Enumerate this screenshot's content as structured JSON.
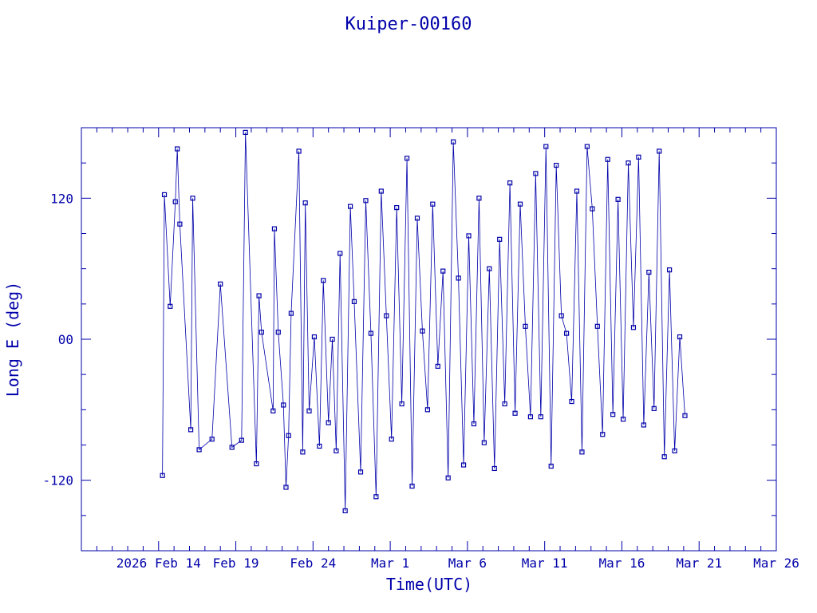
{
  "chart_data": {
    "type": "scatter",
    "title": "Kuiper-00160",
    "xlabel": "Time(UTC)",
    "ylabel": "Long E (deg)",
    "x_tick_labels": [
      "2026 Feb 14",
      "Feb 19",
      "Feb 24",
      "Mar 1",
      "Mar 6",
      "Mar 11",
      "Mar 16",
      "Mar 21",
      "Mar 26"
    ],
    "x_tick_dates": [
      "2026-02-14",
      "2026-02-19",
      "2026-02-24",
      "2026-03-01",
      "2026-03-06",
      "2026-03-11",
      "2026-03-16",
      "2026-03-21",
      "2026-03-26"
    ],
    "y_tick_labels": [
      "-120",
      "00",
      "120"
    ],
    "y_tick_values": [
      -120,
      0,
      120
    ],
    "xlim": [
      "2026-02-09",
      "2026-03-26"
    ],
    "ylim": [
      -180,
      180
    ],
    "grid": false,
    "series": [
      {
        "connect": true,
        "points": [
          [
            "2026-02-14 06:00",
            -116
          ],
          [
            "2026-02-14 09:00",
            123
          ],
          [
            "2026-02-14 18:00",
            28
          ],
          [
            "2026-02-15 02:00",
            117
          ],
          [
            "2026-02-15 05:00",
            162
          ],
          [
            "2026-02-15 09:00",
            98
          ],
          [
            "2026-02-16 02:00",
            -77
          ],
          [
            "2026-02-16 05:00",
            120
          ],
          [
            "2026-02-16 15:00",
            -94
          ],
          [
            "2026-02-17 11:00",
            -85
          ],
          [
            "2026-02-18 00:00",
            47
          ],
          [
            "2026-02-18 18:00",
            -92
          ],
          [
            "2026-02-19 09:00",
            -86
          ],
          [
            "2026-02-19 15:00",
            176
          ],
          [
            "2026-02-20 08:00",
            -106
          ],
          [
            "2026-02-20 12:00",
            37
          ],
          [
            "2026-02-20 16:00",
            6
          ],
          [
            "2026-02-21 10:00",
            -61
          ],
          [
            "2026-02-21 12:00",
            94
          ],
          [
            "2026-02-21 18:00",
            6
          ],
          [
            "2026-02-22 02:00",
            -56
          ],
          [
            "2026-02-22 06:00",
            -126
          ],
          [
            "2026-02-22 10:00",
            -82
          ],
          [
            "2026-02-22 14:00",
            22
          ],
          [
            "2026-02-23 02:00",
            160
          ],
          [
            "2026-02-23 08:00",
            -96
          ],
          [
            "2026-02-23 12:00",
            116
          ],
          [
            "2026-02-23 18:00",
            -61
          ],
          [
            "2026-02-24 02:00",
            2
          ],
          [
            "2026-02-24 10:00",
            -91
          ],
          [
            "2026-02-24 16:00",
            50
          ],
          [
            "2026-02-25 00:00",
            -71
          ],
          [
            "2026-02-25 06:00",
            0
          ],
          [
            "2026-02-25 12:00",
            -95
          ],
          [
            "2026-02-25 18:00",
            73
          ],
          [
            "2026-02-26 02:00",
            -146
          ],
          [
            "2026-02-26 10:00",
            113
          ],
          [
            "2026-02-26 16:00",
            32
          ],
          [
            "2026-02-27 02:00",
            -113
          ],
          [
            "2026-02-27 10:00",
            118
          ],
          [
            "2026-02-27 18:00",
            5
          ],
          [
            "2026-02-28 02:00",
            -134
          ],
          [
            "2026-02-28 10:00",
            126
          ],
          [
            "2026-02-28 18:00",
            20
          ],
          [
            "2026-03-01 02:00",
            -85
          ],
          [
            "2026-03-01 10:00",
            112
          ],
          [
            "2026-03-01 18:00",
            -55
          ],
          [
            "2026-03-02 02:00",
            154
          ],
          [
            "2026-03-02 10:00",
            -125
          ],
          [
            "2026-03-02 18:00",
            103
          ],
          [
            "2026-03-03 02:00",
            7
          ],
          [
            "2026-03-03 10:00",
            -60
          ],
          [
            "2026-03-03 18:00",
            115
          ],
          [
            "2026-03-04 02:00",
            -23
          ],
          [
            "2026-03-04 10:00",
            58
          ],
          [
            "2026-03-04 18:00",
            -118
          ],
          [
            "2026-03-05 02:00",
            168
          ],
          [
            "2026-03-05 10:00",
            52
          ],
          [
            "2026-03-05 18:00",
            -107
          ],
          [
            "2026-03-06 02:00",
            88
          ],
          [
            "2026-03-06 10:00",
            -72
          ],
          [
            "2026-03-06 18:00",
            120
          ],
          [
            "2026-03-07 02:00",
            -88
          ],
          [
            "2026-03-07 10:00",
            60
          ],
          [
            "2026-03-07 18:00",
            -110
          ],
          [
            "2026-03-08 02:00",
            85
          ],
          [
            "2026-03-08 10:00",
            -55
          ],
          [
            "2026-03-08 18:00",
            133
          ],
          [
            "2026-03-09 02:00",
            -63
          ],
          [
            "2026-03-09 10:00",
            115
          ],
          [
            "2026-03-09 18:00",
            11
          ],
          [
            "2026-03-10 02:00",
            -66
          ],
          [
            "2026-03-10 10:00",
            141
          ],
          [
            "2026-03-10 18:00",
            -66
          ],
          [
            "2026-03-11 02:00",
            164
          ],
          [
            "2026-03-11 10:00",
            -108
          ],
          [
            "2026-03-11 18:00",
            148
          ],
          [
            "2026-03-12 02:00",
            20
          ],
          [
            "2026-03-12 10:00",
            5
          ],
          [
            "2026-03-12 18:00",
            -53
          ],
          [
            "2026-03-13 02:00",
            126
          ],
          [
            "2026-03-13 10:00",
            -96
          ],
          [
            "2026-03-13 18:00",
            164
          ],
          [
            "2026-03-14 02:00",
            111
          ],
          [
            "2026-03-14 10:00",
            11
          ],
          [
            "2026-03-14 18:00",
            -81
          ],
          [
            "2026-03-15 02:00",
            153
          ],
          [
            "2026-03-15 10:00",
            -64
          ],
          [
            "2026-03-15 18:00",
            119
          ],
          [
            "2026-03-16 02:00",
            -68
          ],
          [
            "2026-03-16 10:00",
            150
          ],
          [
            "2026-03-16 18:00",
            10
          ],
          [
            "2026-03-17 02:00",
            155
          ],
          [
            "2026-03-17 10:00",
            -73
          ],
          [
            "2026-03-17 18:00",
            57
          ],
          [
            "2026-03-18 02:00",
            -59
          ],
          [
            "2026-03-18 10:00",
            160
          ],
          [
            "2026-03-18 18:00",
            -100
          ],
          [
            "2026-03-19 02:00",
            59
          ],
          [
            "2026-03-19 10:00",
            -95
          ],
          [
            "2026-03-19 18:00",
            2
          ],
          [
            "2026-03-20 02:00",
            -65
          ]
        ]
      }
    ]
  }
}
